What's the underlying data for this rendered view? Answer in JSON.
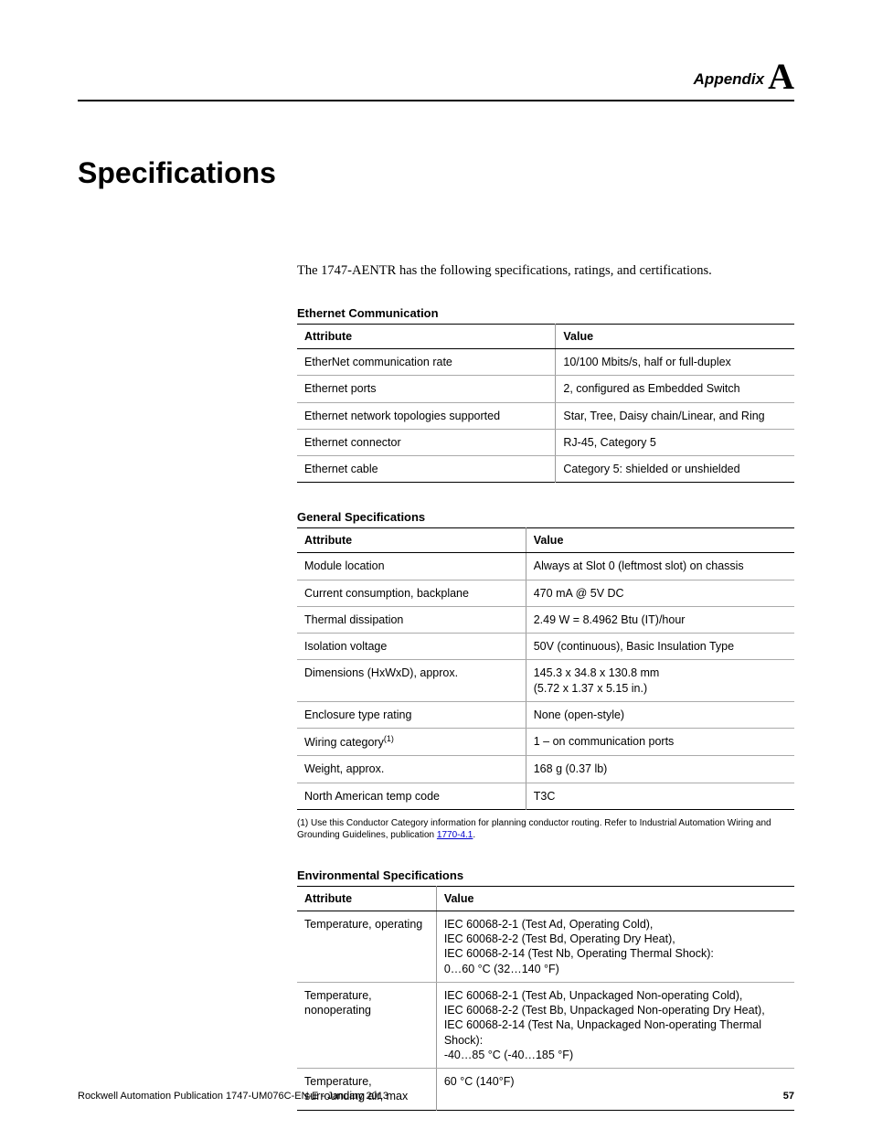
{
  "header": {
    "label": "Appendix",
    "letter": "A"
  },
  "title": "Specifications",
  "intro": "The 1747-AENTR has the following specifications, ratings, and certifications.",
  "ethernet": {
    "title": "Ethernet Communication",
    "col1": "Attribute",
    "col2": "Value",
    "rows": [
      {
        "a": "EtherNet communication rate",
        "v": "10/100 Mbits/s, half or full-duplex"
      },
      {
        "a": "Ethernet ports",
        "v": "2, configured as Embedded Switch"
      },
      {
        "a": "Ethernet network topologies supported",
        "v": "Star, Tree, Daisy chain/Linear, and Ring"
      },
      {
        "a": "Ethernet connector",
        "v": "RJ-45, Category 5"
      },
      {
        "a": "Ethernet cable",
        "v": "Category 5: shielded or unshielded"
      }
    ]
  },
  "general": {
    "title": "General Specifications",
    "col1": "Attribute",
    "col2": "Value",
    "rows": [
      {
        "a": "Module location",
        "v": "Always at Slot 0 (leftmost slot) on chassis"
      },
      {
        "a": "Current consumption, backplane",
        "v": "470 mA @ 5V DC"
      },
      {
        "a": "Thermal dissipation",
        "v": "2.49 W = 8.4962 Btu (IT)/hour"
      },
      {
        "a": "Isolation voltage",
        "v": "50V (continuous), Basic Insulation Type"
      },
      {
        "a": "Dimensions (HxWxD), approx.",
        "v": "145.3 x 34.8 x 130.8 mm\n(5.72 x 1.37 x 5.15 in.)"
      },
      {
        "a": "Enclosure type rating",
        "v": "None (open-style)"
      },
      {
        "a": "Wiring category",
        "sup": "(1)",
        "v": "1 – on communication ports"
      },
      {
        "a": "Weight, approx.",
        "v": "168 g (0.37 lb)"
      },
      {
        "a": "North American temp code",
        "v": "T3C"
      }
    ],
    "footnote_prefix": "(1)   Use this Conductor Category information for planning conductor routing. Refer to Industrial Automation Wiring and Grounding Guidelines, publication ",
    "footnote_link": "1770-4.1",
    "footnote_suffix": "."
  },
  "env": {
    "title": "Environmental Specifications",
    "col1": "Attribute",
    "col2": "Value",
    "rows": [
      {
        "a": "Temperature, operating",
        "v": "IEC 60068-2-1 (Test Ad, Operating Cold),\nIEC 60068-2-2 (Test Bd, Operating Dry Heat),\nIEC 60068-2-14 (Test Nb, Operating Thermal Shock):\n0…60 °C (32…140 °F)"
      },
      {
        "a": "Temperature, nonoperating",
        "v": "IEC 60068-2-1 (Test Ab, Unpackaged Non-operating Cold),\nIEC 60068-2-2 (Test Bb, Unpackaged Non-operating Dry Heat),\nIEC 60068-2-14 (Test Na, Unpackaged Non-operating Thermal Shock):\n-40…85 °C (-40…185 °F)"
      },
      {
        "a": "Temperature, surrounding air, max",
        "v": "60 °C (140°F)"
      }
    ]
  },
  "footer": {
    "pub": "Rockwell Automation Publication 1747-UM076C-EN-E - January 2013",
    "page": "57"
  }
}
